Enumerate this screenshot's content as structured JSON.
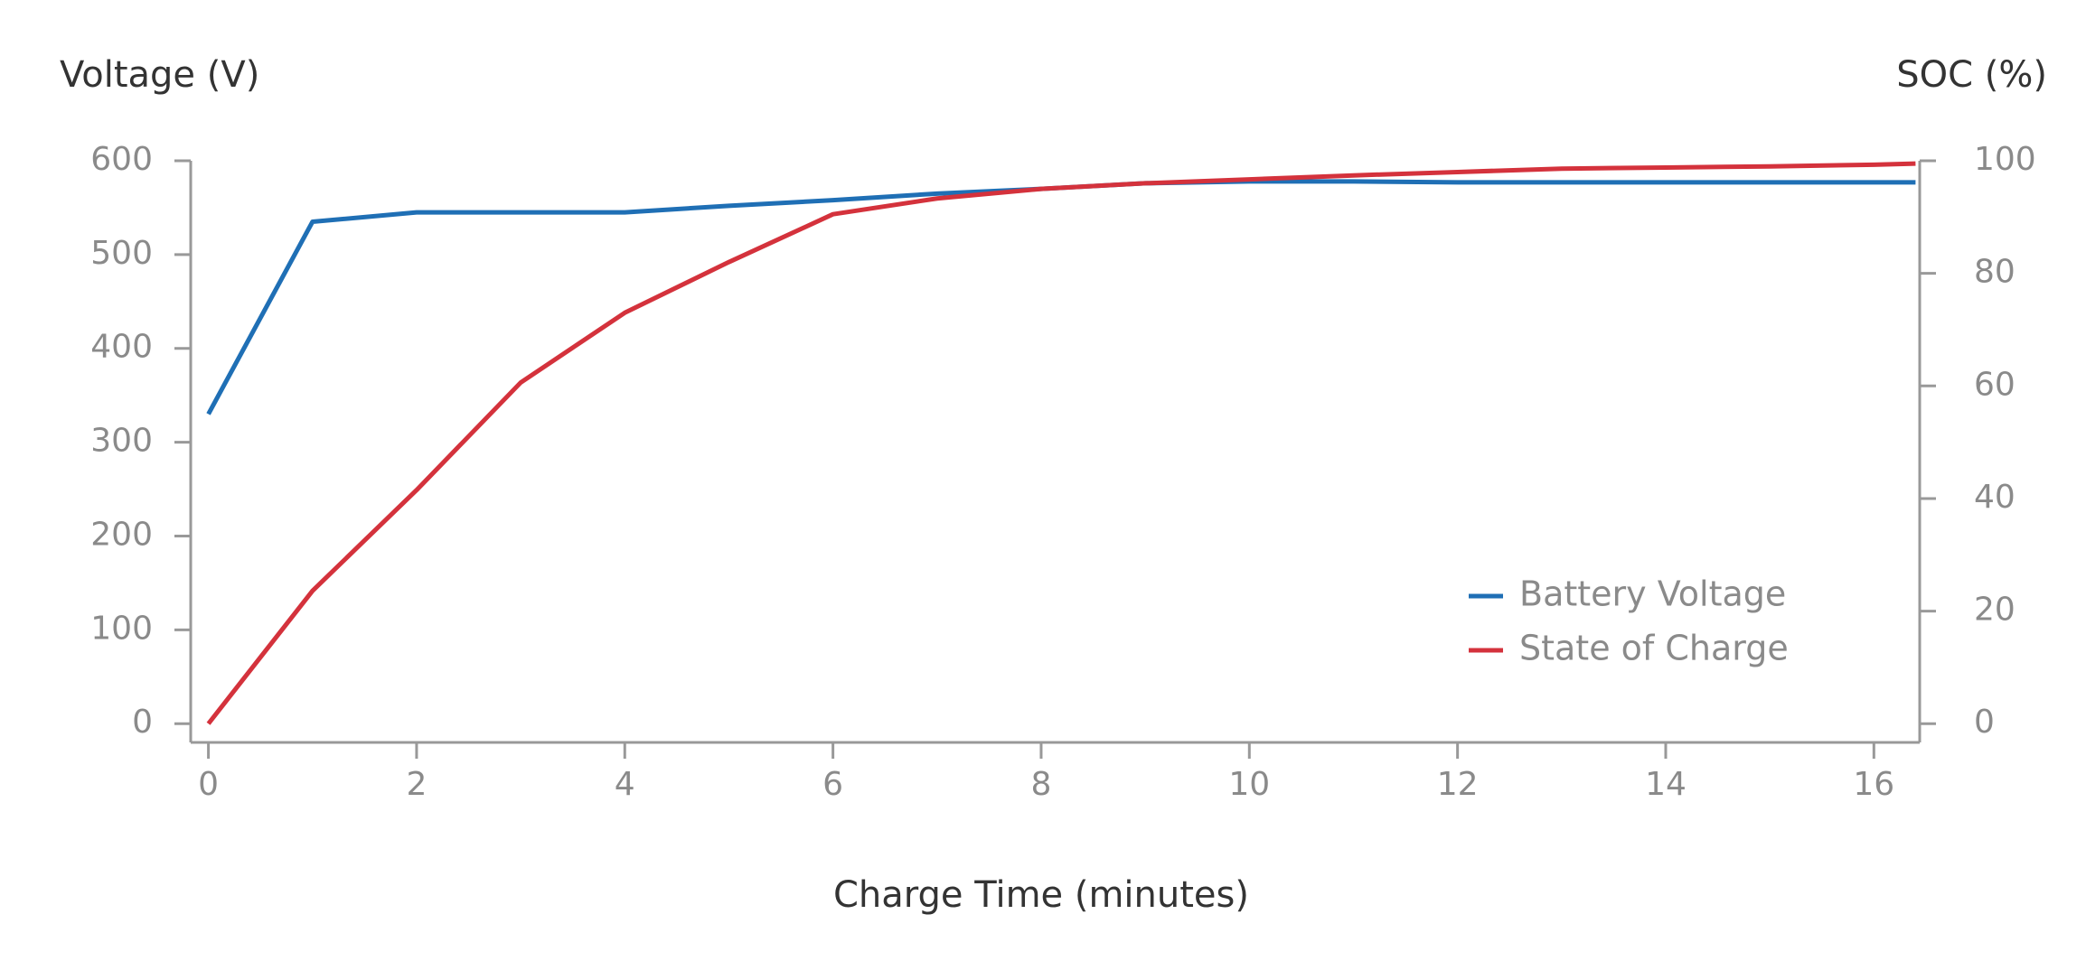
{
  "chart_data": {
    "type": "line",
    "y_label": "Voltage (V)",
    "y2_label": "SOC (%)",
    "x_label": "Charge Time (minutes)",
    "x": [
      0,
      1,
      2,
      3,
      4,
      5,
      6,
      7,
      8,
      9,
      10,
      11,
      12,
      13,
      14,
      15,
      16,
      16.4
    ],
    "series": [
      {
        "name": "Battery Voltage",
        "color": "#1f6fb5",
        "values": [
          330,
          535,
          545,
          545,
          545,
          552,
          558,
          565,
          570,
          576,
          578,
          578,
          577,
          577,
          577,
          577,
          577,
          577
        ]
      },
      {
        "name": "State of Charge",
        "color": "#d4323c",
        "axis": "y2",
        "values": [
          0,
          23.6,
          41.5,
          60.6,
          73,
          82,
          90.5,
          93.3,
          95,
          96,
          96.7,
          97.4,
          98,
          98.6,
          98.8,
          99,
          99.3,
          99.5
        ]
      }
    ],
    "xlim": [
      -0.17,
      16.44
    ],
    "xticks": [
      0,
      2,
      4,
      6,
      8,
      10,
      12,
      14,
      16
    ],
    "ylim": [
      -20,
      600
    ],
    "yticks": [
      0,
      100,
      200,
      300,
      400,
      500,
      600
    ],
    "y2lim": [
      -3.33,
      100
    ],
    "y2ticks": [
      0,
      20,
      40,
      60,
      80,
      100
    ],
    "grid": false,
    "legend": "lower right"
  }
}
